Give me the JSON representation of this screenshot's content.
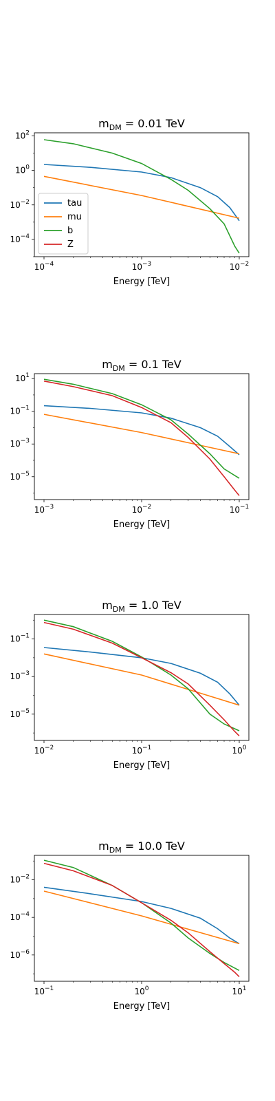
{
  "colors": {
    "tau": "#1f77b4",
    "mu": "#ff7f0e",
    "b": "#2ca02c",
    "Z": "#d62728"
  },
  "chart_data": [
    {
      "type": "line",
      "title_prefix": "m",
      "title_sub": "DM",
      "title_suffix": " = 0.01 TeV",
      "xlabel": "Energy [TeV]",
      "xscale": "log",
      "yscale": "log",
      "xlim": [
        0.0001,
        0.01
      ],
      "ylim": [
        1e-05,
        150
      ],
      "xticks": [
        0.0001,
        0.001,
        0.01
      ],
      "yticks": [
        0.0001,
        0.01,
        1,
        100
      ],
      "legend": "lower-left",
      "series": [
        {
          "name": "tau",
          "x": [
            0.0001,
            0.0003,
            0.001,
            0.002,
            0.004,
            0.006,
            0.008,
            0.01
          ],
          "y": [
            2.2,
            1.5,
            0.8,
            0.38,
            0.1,
            0.03,
            0.007,
            0.0012
          ]
        },
        {
          "name": "mu",
          "x": [
            0.0001,
            0.001,
            0.01
          ],
          "y": [
            0.45,
            0.035,
            0.0017
          ]
        },
        {
          "name": "b",
          "x": [
            0.0001,
            0.0002,
            0.0005,
            0.001,
            0.002,
            0.003,
            0.005,
            0.007,
            0.009,
            0.01
          ],
          "y": [
            60,
            35,
            10,
            2.5,
            0.3,
            0.07,
            0.006,
            0.0008,
            4e-05,
            1.6e-05
          ]
        },
        {
          "name": "Z",
          "x": [],
          "y": []
        }
      ]
    },
    {
      "type": "line",
      "title_prefix": "m",
      "title_sub": "DM",
      "title_suffix": " = 0.1 TeV",
      "xlabel": "Energy [TeV]",
      "xscale": "log",
      "yscale": "log",
      "xlim": [
        0.001,
        0.1
      ],
      "ylim": [
        4e-07,
        20
      ],
      "xticks": [
        0.001,
        0.01,
        0.1
      ],
      "yticks": [
        1e-05,
        0.001,
        0.1,
        10
      ],
      "series": [
        {
          "name": "tau",
          "x": [
            0.001,
            0.003,
            0.01,
            0.02,
            0.04,
            0.06,
            0.08,
            0.1
          ],
          "y": [
            0.22,
            0.15,
            0.08,
            0.038,
            0.01,
            0.003,
            0.0007,
            0.00022
          ]
        },
        {
          "name": "mu",
          "x": [
            0.001,
            0.01,
            0.1
          ],
          "y": [
            0.065,
            0.005,
            0.00025
          ]
        },
        {
          "name": "b",
          "x": [
            0.001,
            0.002,
            0.005,
            0.01,
            0.02,
            0.03,
            0.05,
            0.07,
            0.1
          ],
          "y": [
            9,
            4.5,
            1.2,
            0.25,
            0.03,
            0.004,
            0.00025,
            3e-05,
            8e-06
          ]
        },
        {
          "name": "Z",
          "x": [
            0.001,
            0.002,
            0.005,
            0.01,
            0.02,
            0.03,
            0.05,
            0.07,
            0.09,
            0.1
          ],
          "y": [
            7,
            3.2,
            0.9,
            0.17,
            0.02,
            0.0025,
            0.00012,
            1e-05,
            1.5e-06,
            7e-07
          ]
        }
      ]
    },
    {
      "type": "line",
      "title_prefix": "m",
      "title_sub": "DM",
      "title_suffix": " = 1.0 TeV",
      "xlabel": "Energy [TeV]",
      "xscale": "log",
      "yscale": "log",
      "xlim": [
        0.01,
        1
      ],
      "ylim": [
        4e-07,
        2
      ],
      "xticks": [
        0.01,
        0.1,
        1
      ],
      "yticks": [
        1e-05,
        0.001,
        0.1
      ],
      "series": [
        {
          "name": "tau",
          "x": [
            0.01,
            0.03,
            0.1,
            0.2,
            0.4,
            0.6,
            0.8,
            1
          ],
          "y": [
            0.035,
            0.02,
            0.01,
            0.005,
            0.0015,
            0.0005,
            0.00012,
            3e-05
          ]
        },
        {
          "name": "mu",
          "x": [
            0.01,
            0.1,
            1
          ],
          "y": [
            0.016,
            0.0012,
            3e-05
          ]
        },
        {
          "name": "b",
          "x": [
            0.01,
            0.02,
            0.05,
            0.1,
            0.2,
            0.3,
            0.5,
            0.7,
            1
          ],
          "y": [
            1,
            0.45,
            0.075,
            0.011,
            0.0012,
            0.00022,
            1e-05,
            3e-06,
            1.3e-06
          ]
        },
        {
          "name": "Z",
          "x": [
            0.01,
            0.02,
            0.05,
            0.1,
            0.2,
            0.3,
            0.5,
            0.7,
            0.9,
            1
          ],
          "y": [
            0.75,
            0.33,
            0.06,
            0.01,
            0.0016,
            0.0004,
            3e-05,
            5e-06,
            1.2e-06,
            7e-07
          ]
        }
      ]
    },
    {
      "type": "line",
      "title_prefix": "m",
      "title_sub": "DM",
      "title_suffix": " = 10.0 TeV",
      "xlabel": "Energy [TeV]",
      "xscale": "log",
      "yscale": "log",
      "xlim": [
        0.1,
        10
      ],
      "ylim": [
        4e-08,
        0.2
      ],
      "xticks": [
        0.1,
        1,
        10
      ],
      "yticks": [
        1e-06,
        0.0001,
        0.01
      ],
      "series": [
        {
          "name": "tau",
          "x": [
            0.1,
            0.3,
            1,
            2,
            4,
            6,
            8,
            10
          ],
          "y": [
            0.004,
            0.0018,
            0.0007,
            0.0003,
            9e-05,
            2.5e-05,
            8e-06,
            4e-06
          ]
        },
        {
          "name": "mu",
          "x": [
            0.1,
            1,
            10
          ],
          "y": [
            0.0025,
            0.00012,
            4e-06
          ]
        },
        {
          "name": "b",
          "x": [
            0.1,
            0.2,
            0.5,
            1,
            2,
            3,
            5,
            7,
            10
          ],
          "y": [
            0.11,
            0.045,
            0.005,
            0.0006,
            5e-05,
            8e-06,
            1.2e-06,
            4e-07,
            1.5e-07
          ]
        },
        {
          "name": "Z",
          "x": [
            0.1,
            0.2,
            0.5,
            1,
            2,
            3,
            5,
            7,
            9,
            10
          ],
          "y": [
            0.075,
            0.03,
            0.005,
            0.0006,
            7e-05,
            1.5e-05,
            1.5e-06,
            3.5e-07,
            1.2e-07,
            7e-08
          ]
        }
      ]
    }
  ]
}
